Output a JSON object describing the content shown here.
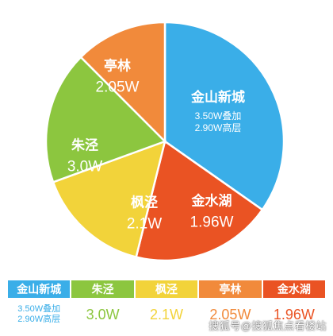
{
  "chart_data": {
    "type": "pie",
    "slices": [
      {
        "name": "金山新城",
        "value_label_lines": [
          "3.50W叠加",
          "2.90W高层"
        ],
        "color": "#3aaee8"
      },
      {
        "name": "金水湖",
        "value": 1.96,
        "value_label": "1.96W",
        "color": "#ea5323"
      },
      {
        "name": "枫泾",
        "value": 2.1,
        "value_label": "2.1W",
        "color": "#f2d33a"
      },
      {
        "name": "朱泾",
        "value": 3.0,
        "value_label": "3.0W",
        "color": "#8cc63f"
      },
      {
        "name": "亭林",
        "value": 2.05,
        "value_label": "2.05W",
        "color": "#f18a3b"
      }
    ]
  },
  "table": {
    "columns": [
      {
        "name": "金山新城",
        "lines": [
          "3.50W叠加",
          "2.90W高层"
        ],
        "color": "#3aaee8"
      },
      {
        "name": "朱泾",
        "lines": [
          "3.0W"
        ],
        "color": "#8cc63f"
      },
      {
        "name": "枫泾",
        "lines": [
          "2.1W"
        ],
        "color": "#f2d33a"
      },
      {
        "name": "亭林",
        "lines": [
          "2.05W"
        ],
        "color": "#f18a3b"
      },
      {
        "name": "金水湖",
        "lines": [
          "1.96W"
        ],
        "color": "#ea5323"
      }
    ]
  },
  "watermark": "搜狐号@搜狐焦点看楼站"
}
